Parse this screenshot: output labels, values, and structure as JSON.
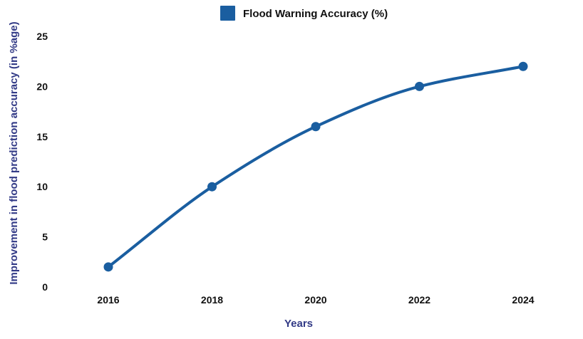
{
  "colors": {
    "series": "#1a5ea0",
    "axis_title": "#323a86",
    "tick_text": "#111111"
  },
  "chart_data": {
    "type": "line",
    "title": "",
    "xlabel": "Years",
    "ylabel": "Improvement in flood prediction accuracy (in %age)",
    "x": [
      "2016",
      "2018",
      "2020",
      "2022",
      "2024"
    ],
    "series": [
      {
        "name": "Flood Warning Accuracy (%)",
        "values": [
          2,
          10,
          16,
          20,
          22
        ]
      }
    ],
    "ylim": [
      0,
      25
    ],
    "yticks": [
      0,
      5,
      10,
      15,
      20,
      25
    ],
    "grid": false,
    "legend": "top-center",
    "smooth": true
  }
}
